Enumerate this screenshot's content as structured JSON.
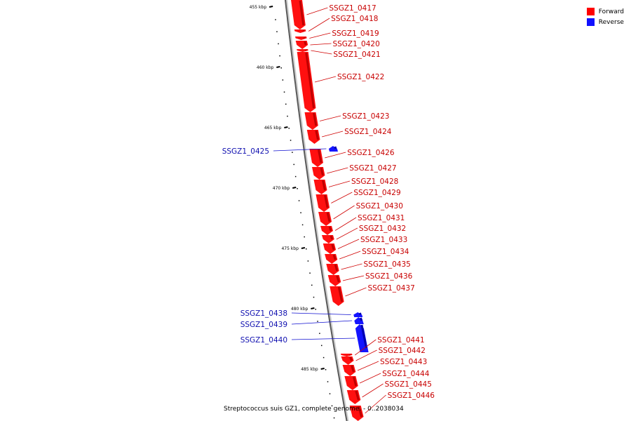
{
  "legend": [
    {
      "label": "Forward",
      "color": "#ff0000"
    },
    {
      "label": "Reverse",
      "color": "#1010ff"
    }
  ],
  "caption": "Streptococcus suis GZ1, complete genome. - 0..2038034",
  "ticks": [
    "455 kbp",
    "460 kbp",
    "465 kbp",
    "470 kbp",
    "475 kbp",
    "480 kbp",
    "485 kbp"
  ],
  "genes": [
    {
      "name": "SSGZ1_0417",
      "strand": "forward"
    },
    {
      "name": "SSGZ1_0418",
      "strand": "forward"
    },
    {
      "name": "SSGZ1_0419",
      "strand": "forward"
    },
    {
      "name": "SSGZ1_0420",
      "strand": "forward"
    },
    {
      "name": "SSGZ1_0421",
      "strand": "forward"
    },
    {
      "name": "SSGZ1_0422",
      "strand": "forward"
    },
    {
      "name": "SSGZ1_0423",
      "strand": "forward"
    },
    {
      "name": "SSGZ1_0424",
      "strand": "forward"
    },
    {
      "name": "SSGZ1_0425",
      "strand": "reverse"
    },
    {
      "name": "SSGZ1_0426",
      "strand": "forward"
    },
    {
      "name": "SSGZ1_0427",
      "strand": "forward"
    },
    {
      "name": "SSGZ1_0428",
      "strand": "forward"
    },
    {
      "name": "SSGZ1_0429",
      "strand": "forward"
    },
    {
      "name": "SSGZ1_0430",
      "strand": "forward"
    },
    {
      "name": "SSGZ1_0431",
      "strand": "forward"
    },
    {
      "name": "SSGZ1_0432",
      "strand": "forward"
    },
    {
      "name": "SSGZ1_0433",
      "strand": "forward"
    },
    {
      "name": "SSGZ1_0434",
      "strand": "forward"
    },
    {
      "name": "SSGZ1_0435",
      "strand": "forward"
    },
    {
      "name": "SSGZ1_0436",
      "strand": "forward"
    },
    {
      "name": "SSGZ1_0437",
      "strand": "forward"
    },
    {
      "name": "SSGZ1_0438",
      "strand": "reverse"
    },
    {
      "name": "SSGZ1_0439",
      "strand": "reverse"
    },
    {
      "name": "SSGZ1_0440",
      "strand": "reverse"
    },
    {
      "name": "SSGZ1_0441",
      "strand": "forward"
    },
    {
      "name": "SSGZ1_0442",
      "strand": "forward"
    },
    {
      "name": "SSGZ1_0443",
      "strand": "forward"
    },
    {
      "name": "SSGZ1_0444",
      "strand": "forward"
    },
    {
      "name": "SSGZ1_0445",
      "strand": "forward"
    },
    {
      "name": "SSGZ1_0446",
      "strand": "forward"
    }
  ]
}
